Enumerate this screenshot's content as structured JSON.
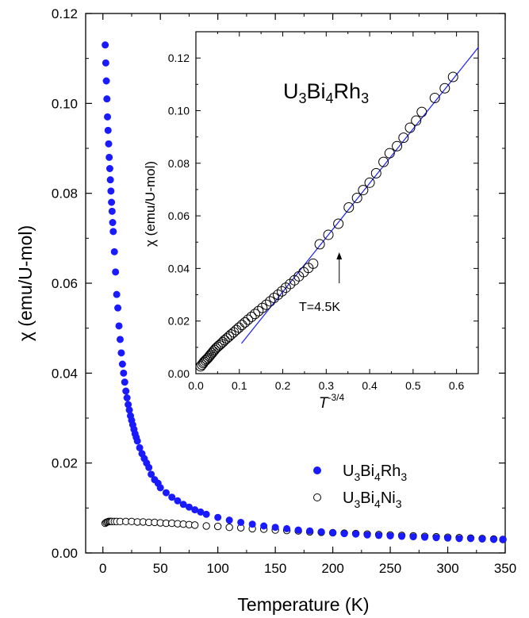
{
  "chart_data": [
    {
      "type": "scatter",
      "xlabel": "Temperature (K)",
      "ylabel": "χ (emu/U-mol)",
      "xlim": [
        -15,
        350
      ],
      "ylim": [
        0,
        0.12
      ],
      "xticks": [
        "0",
        "50",
        "100",
        "150",
        "200",
        "250",
        "300",
        "350"
      ],
      "yticks": [
        "0.00",
        "0.02",
        "0.04",
        "0.06",
        "0.08",
        "0.10",
        "0.12"
      ],
      "legend_position": "bottom-right",
      "series": [
        {
          "name_parts": [
            "U",
            "3",
            "Bi",
            "4",
            "Rh",
            "3"
          ],
          "color": "#1a1aff",
          "marker": "filled-circle",
          "points": [
            [
              2,
              0.113
            ],
            [
              2.5,
              0.109
            ],
            [
              3,
              0.105
            ],
            [
              3.5,
              0.101
            ],
            [
              4,
              0.097
            ],
            [
              4.5,
              0.094
            ],
            [
              5,
              0.091
            ],
            [
              5.5,
              0.088
            ],
            [
              6,
              0.0855
            ],
            [
              6.5,
              0.083
            ],
            [
              7,
              0.0805
            ],
            [
              7.5,
              0.078
            ],
            [
              8,
              0.076
            ],
            [
              8.5,
              0.0735
            ],
            [
              9,
              0.0715
            ],
            [
              10,
              0.067
            ],
            [
              11,
              0.0625
            ],
            [
              12,
              0.0575
            ],
            [
              13,
              0.0545
            ],
            [
              14,
              0.0505
            ],
            [
              15,
              0.0475
            ],
            [
              16,
              0.0445
            ],
            [
              17,
              0.042
            ],
            [
              18,
              0.04
            ],
            [
              19,
              0.038
            ],
            [
              20,
              0.036
            ],
            [
              21,
              0.0345
            ],
            [
              22,
              0.033
            ],
            [
              23,
              0.0318
            ],
            [
              24,
              0.0305
            ],
            [
              25,
              0.0295
            ],
            [
              26,
              0.0285
            ],
            [
              27,
              0.0275
            ],
            [
              28,
              0.0265
            ],
            [
              29,
              0.0257
            ],
            [
              30,
              0.0249
            ],
            [
              32,
              0.0234
            ],
            [
              34,
              0.0221
            ],
            [
              36,
              0.021
            ],
            [
              38,
              0.02
            ],
            [
              40,
              0.019
            ],
            [
              42,
              0.0175
            ],
            [
              45,
              0.0163
            ],
            [
              48,
              0.0155
            ],
            [
              50,
              0.0145
            ],
            [
              55,
              0.0134
            ],
            [
              60,
              0.0124
            ],
            [
              65,
              0.0116
            ],
            [
              70,
              0.0108
            ],
            [
              75,
              0.0102
            ],
            [
              80,
              0.0096
            ],
            [
              85,
              0.0091
            ],
            [
              90,
              0.0086
            ],
            [
              100,
              0.0079
            ],
            [
              110,
              0.0073
            ],
            [
              120,
              0.0068
            ],
            [
              130,
              0.0064
            ],
            [
              140,
              0.006
            ],
            [
              150,
              0.0057
            ],
            [
              160,
              0.0054
            ],
            [
              170,
              0.0051
            ],
            [
              180,
              0.0049
            ],
            [
              190,
              0.0047
            ],
            [
              200,
              0.0045
            ],
            [
              210,
              0.0043
            ],
            [
              220,
              0.0042
            ],
            [
              230,
              0.004
            ],
            [
              240,
              0.0039
            ],
            [
              250,
              0.0038
            ],
            [
              260,
              0.0037
            ],
            [
              270,
              0.0036
            ],
            [
              280,
              0.0035
            ],
            [
              290,
              0.0034
            ],
            [
              300,
              0.0033
            ],
            [
              310,
              0.0032
            ],
            [
              320,
              0.0032
            ],
            [
              330,
              0.0031
            ],
            [
              340,
              0.003
            ],
            [
              348,
              0.003
            ]
          ]
        },
        {
          "name_parts": [
            "U",
            "3",
            "Bi",
            "4",
            "Ni",
            "3"
          ],
          "color": "#000000",
          "marker": "open-circle",
          "points": [
            [
              2,
              0.0066
            ],
            [
              3,
              0.0068
            ],
            [
              4,
              0.0069
            ],
            [
              5,
              0.007
            ],
            [
              6,
              0.007
            ],
            [
              7,
              0.007
            ],
            [
              8,
              0.007
            ],
            [
              10,
              0.007
            ],
            [
              12,
              0.007
            ],
            [
              15,
              0.007
            ],
            [
              20,
              0.007
            ],
            [
              25,
              0.007
            ],
            [
              30,
              0.0069
            ],
            [
              35,
              0.0069
            ],
            [
              40,
              0.0068
            ],
            [
              45,
              0.0068
            ],
            [
              50,
              0.0067
            ],
            [
              55,
              0.0066
            ],
            [
              60,
              0.0066
            ],
            [
              65,
              0.0065
            ],
            [
              70,
              0.0064
            ],
            [
              75,
              0.0063
            ],
            [
              80,
              0.0062
            ],
            [
              90,
              0.006
            ],
            [
              100,
              0.0059
            ],
            [
              110,
              0.0057
            ],
            [
              120,
              0.0056
            ],
            [
              130,
              0.0054
            ],
            [
              140,
              0.0053
            ],
            [
              150,
              0.0051
            ],
            [
              160,
              0.005
            ],
            [
              170,
              0.0049
            ],
            [
              180,
              0.0047
            ],
            [
              190,
              0.0046
            ],
            [
              200,
              0.0045
            ],
            [
              210,
              0.0044
            ],
            [
              220,
              0.0043
            ],
            [
              230,
              0.0042
            ],
            [
              240,
              0.0041
            ],
            [
              250,
              0.004
            ],
            [
              260,
              0.0039
            ],
            [
              270,
              0.0038
            ],
            [
              280,
              0.0037
            ],
            [
              290,
              0.0036
            ],
            [
              300,
              0.0035
            ],
            [
              310,
              0.0034
            ],
            [
              320,
              0.0033
            ],
            [
              330,
              0.0032
            ],
            [
              340,
              0.0031
            ],
            [
              348,
              0.003
            ]
          ]
        }
      ]
    },
    {
      "type": "scatter",
      "xlabel_main": "T",
      "xlabel_sup": "-3/4",
      "ylabel": "χ (emu/U-mol)",
      "xlim": [
        0,
        0.65
      ],
      "ylim": [
        0,
        0.13
      ],
      "xticks": [
        "0.0",
        "0.1",
        "0.2",
        "0.3",
        "0.4",
        "0.5",
        "0.6"
      ],
      "yticks": [
        "0.00",
        "0.02",
        "0.04",
        "0.06",
        "0.08",
        "0.10",
        "0.12"
      ],
      "title_parts": [
        "U",
        "3",
        "Bi",
        "4",
        "Rh",
        "3"
      ],
      "annotation": "T=4.5K",
      "annotation_arrow_x": 0.33,
      "fit_line": {
        "color": "#1a1aff",
        "points": [
          [
            0.105,
            0.0115
          ],
          [
            0.65,
            0.124
          ]
        ]
      },
      "series": [
        {
          "marker": "open-circle",
          "color": "#000000",
          "points": [
            [
              0.011,
              0.0028
            ],
            [
              0.014,
              0.0034
            ],
            [
              0.017,
              0.004
            ],
            [
              0.019,
              0.0045
            ],
            [
              0.022,
              0.005
            ],
            [
              0.025,
              0.0055
            ],
            [
              0.028,
              0.006
            ],
            [
              0.031,
              0.0066
            ],
            [
              0.034,
              0.0072
            ],
            [
              0.037,
              0.0078
            ],
            [
              0.04,
              0.0084
            ],
            [
              0.043,
              0.009
            ],
            [
              0.046,
              0.0096
            ],
            [
              0.05,
              0.0102
            ],
            [
              0.054,
              0.0108
            ],
            [
              0.058,
              0.0114
            ],
            [
              0.062,
              0.012
            ],
            [
              0.066,
              0.0127
            ],
            [
              0.071,
              0.0134
            ],
            [
              0.076,
              0.0141
            ],
            [
              0.081,
              0.0149
            ],
            [
              0.087,
              0.0157
            ],
            [
              0.093,
              0.0166
            ],
            [
              0.099,
              0.0175
            ],
            [
              0.106,
              0.0185
            ],
            [
              0.113,
              0.0195
            ],
            [
              0.12,
              0.0205
            ],
            [
              0.128,
              0.0216
            ],
            [
              0.136,
              0.0227
            ],
            [
              0.144,
              0.0238
            ],
            [
              0.153,
              0.025
            ],
            [
              0.162,
              0.0262
            ],
            [
              0.171,
              0.0275
            ],
            [
              0.18,
              0.0288
            ],
            [
              0.189,
              0.03
            ],
            [
              0.198,
              0.0313
            ],
            [
              0.207,
              0.0327
            ],
            [
              0.217,
              0.0341
            ],
            [
              0.227,
              0.0355
            ],
            [
              0.237,
              0.037
            ],
            [
              0.248,
              0.0386
            ],
            [
              0.259,
              0.0402
            ],
            [
              0.27,
              0.0418
            ],
            [
              0.285,
              0.0492
            ],
            [
              0.305,
              0.0528
            ],
            [
              0.328,
              0.057
            ],
            [
              0.352,
              0.0632
            ],
            [
              0.371,
              0.0668
            ],
            [
              0.385,
              0.0698
            ],
            [
              0.4,
              0.0726
            ],
            [
              0.415,
              0.0762
            ],
            [
              0.432,
              0.0805
            ],
            [
              0.446,
              0.0838
            ],
            [
              0.463,
              0.0865
            ],
            [
              0.478,
              0.0897
            ],
            [
              0.493,
              0.0935
            ],
            [
              0.507,
              0.0962
            ],
            [
              0.52,
              0.0995
            ],
            [
              0.55,
              0.1048
            ],
            [
              0.573,
              0.1085
            ],
            [
              0.592,
              0.1128
            ]
          ]
        }
      ]
    }
  ]
}
